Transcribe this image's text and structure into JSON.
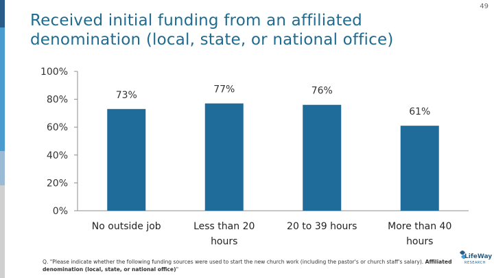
{
  "page_number": "49",
  "title": "Received initial funding from an affiliated denomination (local, state, or national office)",
  "chart_data": {
    "type": "bar",
    "categories": [
      "No outside job",
      "Less than 20 hours",
      "20 to 39 hours",
      "More than 40 hours"
    ],
    "values": [
      73,
      77,
      76,
      61
    ],
    "value_labels": [
      "73%",
      "77%",
      "76%",
      "61%"
    ],
    "ylim": [
      0,
      100
    ],
    "yticks": [
      0,
      20,
      40,
      60,
      80,
      100
    ],
    "ytick_labels": [
      "0%",
      "20%",
      "40%",
      "60%",
      "80%",
      "100%"
    ],
    "bar_color": "#1f6b9a",
    "grid": false,
    "legend": "none"
  },
  "footnote": {
    "text": "Q. \"Please indicate whether the following funding sources were used to start the new church work (including the pastor's or church staff's salary). ",
    "bold_text": "Affiliated denomination (local, state, or national office)",
    "closing": "\""
  },
  "logo": {
    "name": "LifeWay",
    "sub": "RESEARCH"
  },
  "colors": {
    "title": "#1f6b8f",
    "bar": "#1f6b9a",
    "strip": [
      "#2a5c8a",
      "#4a9bd0",
      "#9bbad6",
      "#d0d0d0"
    ]
  }
}
